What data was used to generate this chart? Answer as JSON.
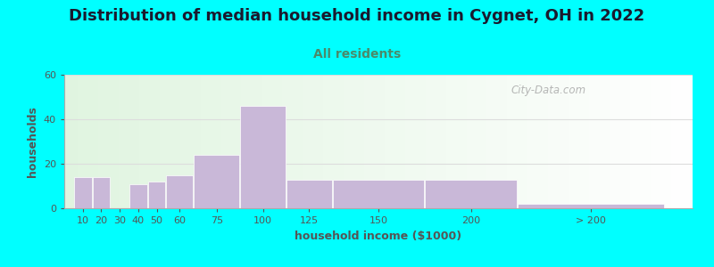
{
  "title": "Distribution of median household income in Cygnet, OH in 2022",
  "subtitle": "All residents",
  "xlabel": "household income ($1000)",
  "ylabel": "households",
  "bar_labels": [
    "10",
    "20",
    "30",
    "40",
    "50",
    "60",
    "75",
    "100",
    "125",
    "150",
    "200",
    "> 200"
  ],
  "bar_values": [
    14,
    14,
    0,
    11,
    12,
    15,
    24,
    46,
    13,
    13,
    13,
    2
  ],
  "bar_lefts": [
    5,
    15,
    25,
    35,
    45,
    55,
    70,
    95,
    120,
    145,
    195,
    245
  ],
  "bar_widths": [
    10,
    10,
    10,
    10,
    10,
    15,
    25,
    25,
    25,
    50,
    50,
    80
  ],
  "bar_color": "#c9b8d8",
  "bar_edgecolor": "#ffffff",
  "ylim": [
    0,
    60
  ],
  "yticks": [
    0,
    20,
    40,
    60
  ],
  "xlim": [
    0,
    340
  ],
  "background_color": "#00ffff",
  "title_fontsize": 13,
  "title_color": "#1a1a2e",
  "subtitle_fontsize": 10,
  "subtitle_color": "#4a8a6a",
  "axis_label_fontsize": 9,
  "axis_label_color": "#555555",
  "tick_fontsize": 8,
  "watermark_text": "City-Data.com",
  "watermark_color": "#aaaaaa",
  "grid_color": "#dddddd",
  "plot_bg_green": [
    0.88,
    0.96,
    0.88,
    1.0
  ],
  "plot_bg_white": [
    1.0,
    1.0,
    1.0,
    1.0
  ]
}
